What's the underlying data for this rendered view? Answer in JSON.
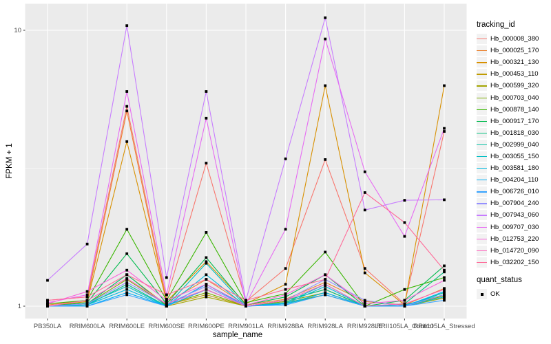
{
  "chart_data": {
    "type": "line",
    "title": "",
    "xlabel": "sample_name",
    "ylabel": "FPKM + 1",
    "y_scale": "log10",
    "y_tick_labels": [
      "1",
      "10"
    ],
    "y_ticks": [
      1,
      10
    ],
    "y_minor_ticks": [
      3.162
    ],
    "ylim": [
      0.97,
      12.5
    ],
    "grid": true,
    "panel_bg": "#EBEBEB",
    "grid_color": "#FFFFFF",
    "marker": "filled-square-black",
    "categories": [
      "PB350LA",
      "RRIM600LA",
      "RRIM600LE",
      "RRIM600SE",
      "RRIM600PE",
      "RRIM901LA",
      "RRIM928BA",
      "RRIM928LA",
      "RRIM928LE",
      "RRII105LA_Control",
      "RRII105LA_Stressed"
    ],
    "legend": {
      "series_title": "tracking_id",
      "shape_title": "quant_status",
      "shape_label": "OK",
      "position": "right"
    },
    "series": [
      {
        "name": "Hb_000008_380",
        "color": "#F8766D",
        "values": [
          1.05,
          1.08,
          5.3,
          1.06,
          3.3,
          1.04,
          1.37,
          3.4,
          1.37,
          1.02,
          4.3
        ]
      },
      {
        "name": "Hb_000025_170",
        "color": "#EA8331",
        "values": [
          1.01,
          1.05,
          5.1,
          1.03,
          1.25,
          1.01,
          1.06,
          1.22,
          1.04,
          1.01,
          1.16
        ]
      },
      {
        "name": "Hb_000321_130",
        "color": "#D89000",
        "values": [
          1.0,
          1.04,
          3.95,
          1.04,
          1.45,
          1.02,
          1.2,
          6.3,
          1.32,
          1.01,
          6.3
        ]
      },
      {
        "name": "Hb_000453_110",
        "color": "#C09B00",
        "values": [
          1.0,
          1.02,
          1.3,
          1.01,
          1.1,
          1.0,
          1.05,
          1.15,
          1.0,
          1.0,
          1.1
        ]
      },
      {
        "name": "Hb_000599_320",
        "color": "#A3A500",
        "values": [
          1.0,
          1.01,
          1.2,
          1.0,
          1.08,
          1.0,
          1.03,
          1.1,
          1.0,
          1.0,
          1.07
        ]
      },
      {
        "name": "Hb_000703_040",
        "color": "#7CAE00",
        "values": [
          1.0,
          1.02,
          1.25,
          1.01,
          1.12,
          1.0,
          1.04,
          1.12,
          1.0,
          1.0,
          1.09
        ]
      },
      {
        "name": "Hb_000878_140",
        "color": "#39B600",
        "values": [
          1.02,
          1.05,
          1.9,
          1.05,
          1.85,
          1.03,
          1.11,
          1.57,
          1.0,
          1.15,
          1.27
        ]
      },
      {
        "name": "Hb_000917_170",
        "color": "#00BB4E",
        "values": [
          1.0,
          1.03,
          1.55,
          1.02,
          1.5,
          1.01,
          1.08,
          1.3,
          1.0,
          1.05,
          1.4
        ]
      },
      {
        "name": "Hb_001818_030",
        "color": "#00BF7D",
        "values": [
          1.0,
          1.02,
          1.3,
          1.0,
          1.2,
          1.0,
          1.05,
          1.15,
          1.0,
          1.02,
          1.33
        ]
      },
      {
        "name": "Hb_002999_040",
        "color": "#00C1A3",
        "values": [
          1.0,
          1.01,
          1.2,
          1.0,
          1.15,
          1.0,
          1.02,
          1.1,
          1.0,
          1.0,
          1.12
        ]
      },
      {
        "name": "Hb_003055_150",
        "color": "#00BFC4",
        "values": [
          1.0,
          1.02,
          1.18,
          1.0,
          1.43,
          1.0,
          1.03,
          1.2,
          1.0,
          1.01,
          1.1
        ]
      },
      {
        "name": "Hb_003581_180",
        "color": "#00BAE0",
        "values": [
          1.0,
          1.01,
          1.15,
          1.0,
          1.3,
          1.0,
          1.02,
          1.18,
          1.0,
          1.0,
          1.08
        ]
      },
      {
        "name": "Hb_004204_110",
        "color": "#00B0F6",
        "values": [
          1.0,
          1.0,
          1.12,
          1.0,
          1.2,
          1.0,
          1.02,
          1.12,
          1.0,
          1.0,
          1.13
        ]
      },
      {
        "name": "Hb_006726_010",
        "color": "#35A2FF",
        "values": [
          1.0,
          1.0,
          1.1,
          1.0,
          1.15,
          1.0,
          1.01,
          1.1,
          1.0,
          1.0,
          1.05
        ]
      },
      {
        "name": "Hb_007904_240",
        "color": "#9590FF",
        "values": [
          1.0,
          1.02,
          1.22,
          1.02,
          1.18,
          1.0,
          1.05,
          1.25,
          1.05,
          1.0,
          1.1
        ]
      },
      {
        "name": "Hb_007943_060",
        "color": "#C77CFF",
        "values": [
          1.24,
          1.68,
          10.4,
          1.27,
          6.0,
          1.05,
          3.42,
          11.1,
          2.23,
          2.42,
          2.43
        ]
      },
      {
        "name": "Hb_009707_030",
        "color": "#E76BF3",
        "values": [
          1.03,
          1.1,
          6.0,
          1.1,
          4.8,
          1.02,
          1.9,
          9.3,
          3.07,
          1.79,
          4.41
        ]
      },
      {
        "name": "Hb_012753_220",
        "color": "#FA62DB",
        "values": [
          1.02,
          1.13,
          1.35,
          1.05,
          1.2,
          1.01,
          1.1,
          1.3,
          1.02,
          1.05,
          1.24
        ]
      },
      {
        "name": "Hb_014720_090",
        "color": "#FF62BC",
        "values": [
          1.0,
          1.05,
          1.26,
          1.02,
          1.15,
          1.0,
          1.05,
          1.2,
          1.0,
          1.02,
          1.15
        ]
      },
      {
        "name": "Hb_032202_150",
        "color": "#FF6A98",
        "values": [
          1.05,
          1.08,
          1.3,
          1.1,
          1.25,
          1.05,
          1.15,
          1.25,
          2.58,
          2.01,
          1.35
        ]
      }
    ]
  }
}
